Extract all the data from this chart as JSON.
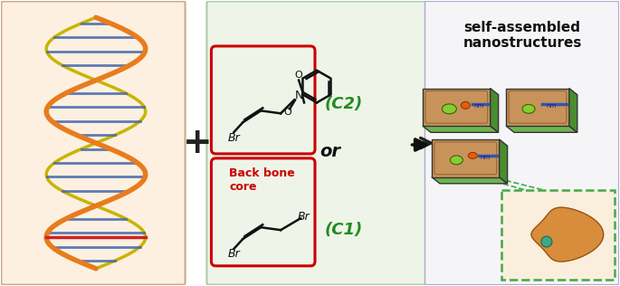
{
  "background_color": "#ffffff",
  "panel1_bg": "#fdf0e0",
  "panel2_bg": "#eef5e8",
  "panel3_bg": "#f0f0f5",
  "title_text": "self-assembled\nnanostructures",
  "label_c1": "(C1)",
  "label_c2": "(C2)",
  "label_or": "or",
  "label_backbone": "Back bone\ncore",
  "label_br1": "Br",
  "label_br2": "Br",
  "label_br3": "Br",
  "arrow_color": "#222222",
  "red_color": "#cc0000",
  "green_label_color": "#228B22",
  "dna_orange": "#e87c1e",
  "dna_yellow": "#c8b400",
  "dna_blue": "#4466aa",
  "dna_red": "#cc2222",
  "nano_green": "#5aaa44",
  "nano_tan": "#c8935a",
  "nano_orange_dot": "#e06010",
  "nano_green_dot": "#88cc33",
  "nano_blue_stripe": "#3355aa",
  "protein_orange": "#d4832a",
  "protein_teal": "#3aaa88",
  "dashed_green": "#44aa44",
  "plus_symbol": "+",
  "figwidth": 6.85,
  "figheight": 3.16
}
